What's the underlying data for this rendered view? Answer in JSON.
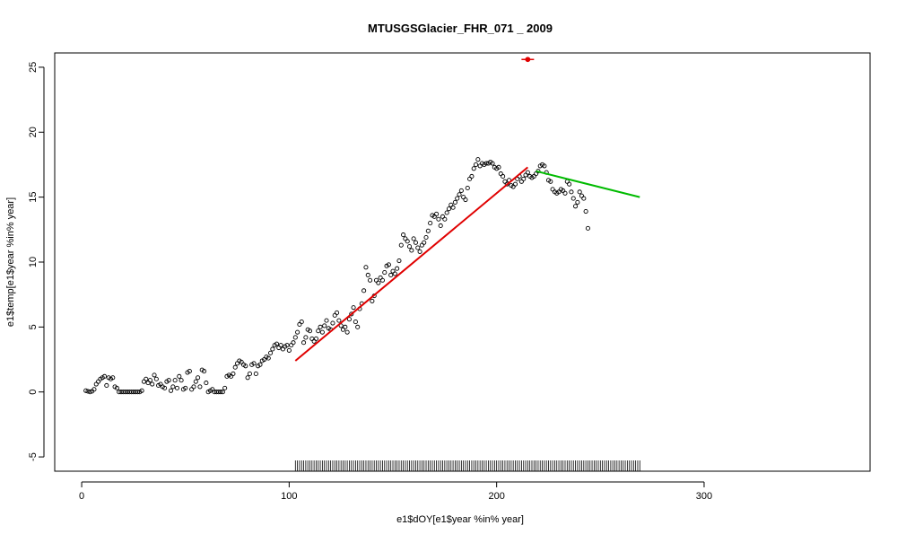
{
  "chart_data": {
    "type": "scatter",
    "title": "MTUSGSGlacier_FHR_071 _ 2009",
    "xlabel": "e1$dOY[e1$year %in% year]",
    "ylabel": "e1$temp[e1$year %in% year]",
    "xlim": [
      -13,
      380
    ],
    "ylim": [
      -6.1,
      26.1
    ],
    "x_ticks": [
      0,
      100,
      200,
      300
    ],
    "y_ticks": [
      -5,
      0,
      5,
      10,
      15,
      20,
      25
    ],
    "grid": false,
    "points": [
      [
        2,
        0.1
      ],
      [
        3,
        0.05
      ],
      [
        4,
        0.0
      ],
      [
        5,
        0.05
      ],
      [
        6,
        0.2
      ],
      [
        7,
        0.6
      ],
      [
        8,
        0.8
      ],
      [
        9,
        1.0
      ],
      [
        10,
        1.1
      ],
      [
        11,
        1.2
      ],
      [
        12,
        0.5
      ],
      [
        13,
        1.1
      ],
      [
        14,
        1.0
      ],
      [
        15,
        1.1
      ],
      [
        16,
        0.4
      ],
      [
        17,
        0.3
      ],
      [
        18,
        0.0
      ],
      [
        19,
        0.0
      ],
      [
        20,
        0.0
      ],
      [
        21,
        0.0
      ],
      [
        22,
        0.0
      ],
      [
        23,
        0.0
      ],
      [
        24,
        0.0
      ],
      [
        25,
        0.0
      ],
      [
        26,
        0.0
      ],
      [
        27,
        0.0
      ],
      [
        28,
        0.0
      ],
      [
        29,
        0.1
      ],
      [
        30,
        0.8
      ],
      [
        31,
        1.0
      ],
      [
        32,
        0.7
      ],
      [
        33,
        0.9
      ],
      [
        34,
        0.6
      ],
      [
        35,
        1.3
      ],
      [
        36,
        1.0
      ],
      [
        37,
        0.5
      ],
      [
        38,
        0.6
      ],
      [
        39,
        0.4
      ],
      [
        40,
        0.3
      ],
      [
        41,
        0.8
      ],
      [
        42,
        0.9
      ],
      [
        43,
        0.1
      ],
      [
        44,
        0.4
      ],
      [
        45,
        0.9
      ],
      [
        46,
        0.3
      ],
      [
        47,
        1.2
      ],
      [
        48,
        0.9
      ],
      [
        49,
        0.2
      ],
      [
        50,
        0.3
      ],
      [
        51,
        1.5
      ],
      [
        52,
        1.6
      ],
      [
        53,
        0.2
      ],
      [
        54,
        0.4
      ],
      [
        55,
        0.8
      ],
      [
        56,
        1.1
      ],
      [
        57,
        0.4
      ],
      [
        58,
        1.7
      ],
      [
        59,
        1.6
      ],
      [
        60,
        0.7
      ],
      [
        61,
        0.0
      ],
      [
        62,
        0.1
      ],
      [
        63,
        0.2
      ],
      [
        64,
        0.0
      ],
      [
        65,
        0.0
      ],
      [
        66,
        0.0
      ],
      [
        67,
        0.0
      ],
      [
        68,
        0.0
      ],
      [
        69,
        0.3
      ],
      [
        70,
        1.2
      ],
      [
        71,
        1.3
      ],
      [
        72,
        1.2
      ],
      [
        73,
        1.4
      ],
      [
        74,
        1.9
      ],
      [
        75,
        2.2
      ],
      [
        76,
        2.4
      ],
      [
        77,
        2.3
      ],
      [
        78,
        2.1
      ],
      [
        79,
        2.0
      ],
      [
        80,
        1.1
      ],
      [
        81,
        1.4
      ],
      [
        82,
        2.1
      ],
      [
        83,
        2.2
      ],
      [
        84,
        1.4
      ],
      [
        85,
        2.0
      ],
      [
        86,
        2.1
      ],
      [
        87,
        2.4
      ],
      [
        88,
        2.5
      ],
      [
        89,
        2.7
      ],
      [
        90,
        2.6
      ],
      [
        91,
        3.0
      ],
      [
        92,
        3.3
      ],
      [
        93,
        3.6
      ],
      [
        94,
        3.7
      ],
      [
        95,
        3.4
      ],
      [
        96,
        3.6
      ],
      [
        97,
        3.3
      ],
      [
        98,
        3.5
      ],
      [
        99,
        3.6
      ],
      [
        100,
        3.2
      ],
      [
        101,
        3.6
      ],
      [
        102,
        3.8
      ],
      [
        103,
        4.2
      ],
      [
        104,
        4.6
      ],
      [
        105,
        5.2
      ],
      [
        106,
        5.4
      ],
      [
        107,
        3.8
      ],
      [
        108,
        4.2
      ],
      [
        109,
        4.8
      ],
      [
        110,
        4.7
      ],
      [
        111,
        4.1
      ],
      [
        112,
        3.9
      ],
      [
        113,
        4.1
      ],
      [
        114,
        4.7
      ],
      [
        115,
        5.0
      ],
      [
        116,
        4.6
      ],
      [
        117,
        5.1
      ],
      [
        118,
        5.5
      ],
      [
        119,
        4.9
      ],
      [
        120,
        4.8
      ],
      [
        121,
        5.3
      ],
      [
        122,
        5.9
      ],
      [
        123,
        6.1
      ],
      [
        124,
        5.5
      ],
      [
        125,
        5.1
      ],
      [
        126,
        4.8
      ],
      [
        127,
        5.0
      ],
      [
        128,
        4.6
      ],
      [
        129,
        5.6
      ],
      [
        130,
        6.0
      ],
      [
        131,
        6.5
      ],
      [
        132,
        5.4
      ],
      [
        133,
        5.0
      ],
      [
        134,
        6.4
      ],
      [
        135,
        6.8
      ],
      [
        136,
        7.8
      ],
      [
        137,
        9.6
      ],
      [
        138,
        9.0
      ],
      [
        139,
        8.6
      ],
      [
        140,
        7.0
      ],
      [
        141,
        7.4
      ],
      [
        142,
        8.6
      ],
      [
        143,
        8.4
      ],
      [
        144,
        8.8
      ],
      [
        145,
        8.6
      ],
      [
        146,
        9.2
      ],
      [
        147,
        9.7
      ],
      [
        148,
        9.8
      ],
      [
        149,
        9.0
      ],
      [
        150,
        9.3
      ],
      [
        151,
        9.1
      ],
      [
        152,
        9.5
      ],
      [
        153,
        10.1
      ],
      [
        154,
        11.3
      ],
      [
        155,
        12.1
      ],
      [
        156,
        11.8
      ],
      [
        157,
        11.6
      ],
      [
        158,
        11.2
      ],
      [
        159,
        10.9
      ],
      [
        160,
        11.8
      ],
      [
        161,
        11.5
      ],
      [
        162,
        11.1
      ],
      [
        163,
        10.8
      ],
      [
        164,
        11.3
      ],
      [
        165,
        11.5
      ],
      [
        166,
        11.9
      ],
      [
        167,
        12.4
      ],
      [
        168,
        13.0
      ],
      [
        169,
        13.6
      ],
      [
        170,
        13.5
      ],
      [
        171,
        13.7
      ],
      [
        172,
        13.3
      ],
      [
        173,
        12.8
      ],
      [
        174,
        13.5
      ],
      [
        175,
        13.3
      ],
      [
        176,
        13.8
      ],
      [
        177,
        14.1
      ],
      [
        178,
        14.4
      ],
      [
        179,
        14.2
      ],
      [
        180,
        14.6
      ],
      [
        181,
        14.9
      ],
      [
        182,
        15.2
      ],
      [
        183,
        15.5
      ],
      [
        184,
        15.0
      ],
      [
        185,
        14.8
      ],
      [
        186,
        15.7
      ],
      [
        187,
        16.4
      ],
      [
        188,
        16.6
      ],
      [
        189,
        17.2
      ],
      [
        190,
        17.5
      ],
      [
        191,
        17.9
      ],
      [
        192,
        17.4
      ],
      [
        193,
        17.6
      ],
      [
        194,
        17.5
      ],
      [
        195,
        17.6
      ],
      [
        196,
        17.6
      ],
      [
        197,
        17.7
      ],
      [
        198,
        17.6
      ],
      [
        199,
        17.3
      ],
      [
        200,
        17.2
      ],
      [
        201,
        17.3
      ],
      [
        202,
        16.8
      ],
      [
        203,
        16.6
      ],
      [
        204,
        16.2
      ],
      [
        205,
        16.0
      ],
      [
        206,
        16.3
      ],
      [
        207,
        15.9
      ],
      [
        208,
        15.8
      ],
      [
        209,
        16.0
      ],
      [
        210,
        16.4
      ],
      [
        211,
        16.6
      ],
      [
        212,
        16.2
      ],
      [
        213,
        16.4
      ],
      [
        214,
        16.7
      ],
      [
        215,
        16.9
      ],
      [
        216,
        16.6
      ],
      [
        217,
        16.5
      ],
      [
        218,
        16.6
      ],
      [
        219,
        16.8
      ],
      [
        220,
        17.0
      ],
      [
        221,
        17.4
      ],
      [
        222,
        17.5
      ],
      [
        223,
        17.4
      ],
      [
        224,
        16.9
      ],
      [
        225,
        16.3
      ],
      [
        226,
        16.2
      ],
      [
        227,
        15.6
      ],
      [
        228,
        15.4
      ],
      [
        229,
        15.3
      ],
      [
        230,
        15.4
      ],
      [
        231,
        15.6
      ],
      [
        232,
        15.5
      ],
      [
        233,
        15.3
      ],
      [
        234,
        16.2
      ],
      [
        235,
        16.0
      ],
      [
        236,
        15.4
      ],
      [
        237,
        14.9
      ],
      [
        238,
        14.3
      ],
      [
        239,
        14.6
      ],
      [
        240,
        15.4
      ],
      [
        241,
        15.1
      ],
      [
        242,
        14.9
      ],
      [
        243,
        13.9
      ],
      [
        244,
        12.6
      ]
    ],
    "segments": [
      {
        "color": "#e00000",
        "x": [
          103,
          215
        ],
        "y": [
          2.4,
          17.3
        ]
      },
      {
        "color": "#00bb00",
        "x": [
          219,
          269
        ],
        "y": [
          17.0,
          15.0
        ]
      }
    ],
    "marker": {
      "color": "#e00000",
      "x": 215,
      "y": 25.6
    },
    "rug": {
      "from": 103,
      "to": 269,
      "step": 1,
      "y": -5.5
    }
  }
}
